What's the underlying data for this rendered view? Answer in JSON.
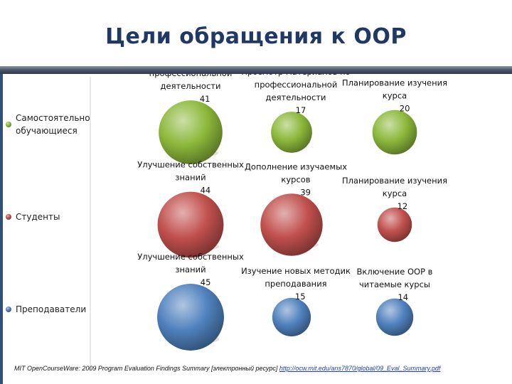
{
  "title": "Цели обращения к ООР",
  "footer": {
    "text": "MIT OpenCourseWare: 2009 Program Evaluation Findings Summary [электронный ресурс]",
    "link": "http://ocw.mit.edu/ans7870/global/09_Eval_Summary.pdf"
  },
  "colors": {
    "title": "#1f3864",
    "group_green": "#8cb83a",
    "group_red": "#c0504d",
    "group_blue": "#4f81bd"
  },
  "chart_data": {
    "type": "bubble",
    "categories": [
      "Самостоятельно обучающиеся",
      "Студенты",
      "Преподаватели"
    ],
    "series": [
      {
        "name": "Самостоятельно обучающиеся",
        "color": "#8cb83a",
        "points": [
          {
            "label": "Изучение курсов, не по профессиональной деятельности",
            "value": 41
          },
          {
            "label": "Просмотр материалов по профессиональной деятельности",
            "value": 17
          },
          {
            "label": "Планирование изучения курса",
            "value": 20
          }
        ]
      },
      {
        "name": "Студенты",
        "color": "#c0504d",
        "points": [
          {
            "label": "Улучшение собственных знаний",
            "value": 44
          },
          {
            "label": "Дополнение изучаемых курсов",
            "value": 39
          },
          {
            "label": "Планирование изучения курса",
            "value": 12
          }
        ]
      },
      {
        "name": "Преподаватели",
        "color": "#4f81bd",
        "points": [
          {
            "label": "Улучшение собственных знаний",
            "value": 45
          },
          {
            "label": "Изучение новых методик преподавания",
            "value": 15
          },
          {
            "label": "Включение ООР в читаемые курсы",
            "value": 14
          }
        ]
      }
    ],
    "legend": "left"
  }
}
